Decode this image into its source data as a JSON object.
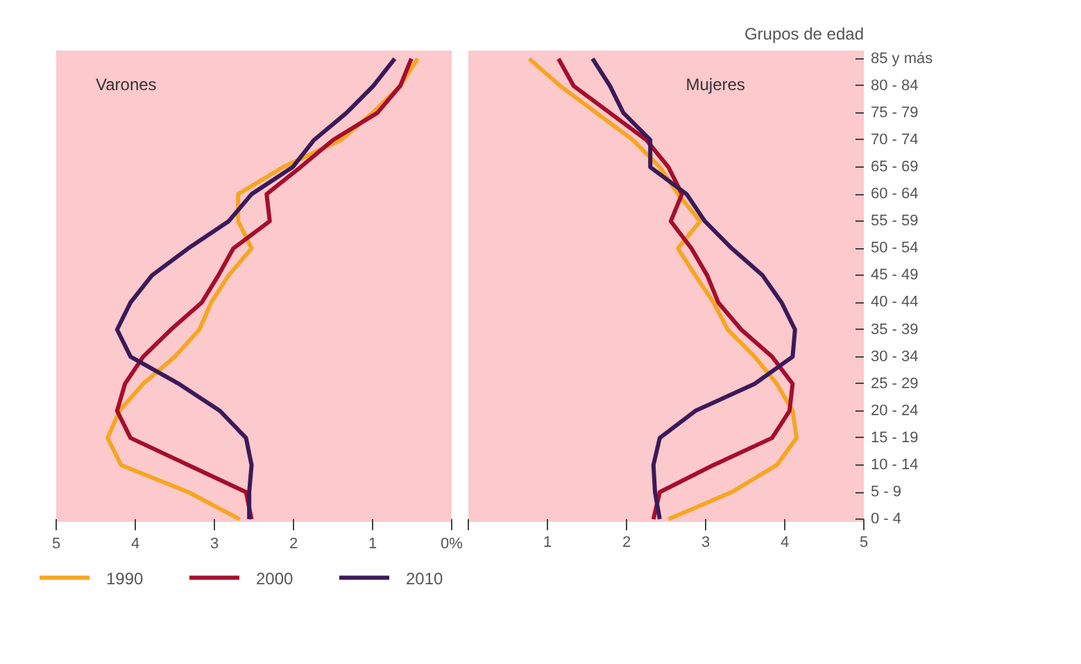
{
  "chart_data": [
    {
      "type": "line",
      "title": "Varones",
      "orientation": "horizontal",
      "categories": [
        null,
        null,
        null,
        null,
        null,
        null,
        null,
        null,
        null,
        null,
        null,
        null,
        null,
        null,
        null,
        null,
        null,
        null
      ],
      "series": [
        {
          "name": "1990",
          "color": "#f5a623",
          "values": [
            0.43,
            0.65,
            1.0,
            1.4,
            2.13,
            2.7,
            2.7,
            2.53,
            2.82,
            3.04,
            3.19,
            3.5,
            3.9,
            4.2,
            4.35,
            4.18,
            3.33,
            2.68
          ]
        },
        {
          "name": "2000",
          "color": "#a50e2d",
          "values": [
            0.51,
            0.65,
            0.94,
            1.5,
            1.91,
            2.34,
            2.3,
            2.76,
            2.95,
            3.16,
            3.55,
            3.9,
            4.13,
            4.23,
            4.06,
            3.33,
            2.6,
            2.53
          ]
        },
        {
          "name": "2010",
          "color": "#3b1a5a",
          "values": [
            0.72,
            0.99,
            1.33,
            1.74,
            2.01,
            2.53,
            2.82,
            3.33,
            3.79,
            4.06,
            4.23,
            4.06,
            3.45,
            2.93,
            2.6,
            2.53,
            2.56,
            2.56
          ]
        }
      ],
      "xlim": [
        5,
        0
      ],
      "xticks": [
        5,
        4,
        3,
        2,
        1,
        {
          "value": 0,
          "label": "0%"
        }
      ],
      "tick_labels": "x",
      "legend": "bottom",
      "line_style": "solid",
      "grid": false
    },
    {
      "type": "line",
      "title": "Mujeres",
      "orientation": "horizontal",
      "ylabel": "Grupos de edad",
      "categories": [
        "85 y más",
        "80 - 84",
        "75 - 79",
        "70 - 74",
        "65 - 69",
        "60 - 64",
        "55 - 59",
        "50 - 54",
        "45 - 49",
        "40 - 44",
        "35 - 39",
        "30 - 34",
        "25 - 29",
        "20 - 24",
        "15 - 19",
        "10 - 14",
        "5 - 9",
        "0 - 4"
      ],
      "series": [
        {
          "color": "#f5a623",
          "values": [
            0.77,
            1.16,
            1.62,
            2.08,
            2.42,
            2.65,
            2.93,
            2.65,
            2.87,
            3.1,
            3.28,
            3.62,
            3.9,
            4.1,
            4.15,
            3.9,
            3.33,
            2.53
          ]
        },
        {
          "color": "#a50e2d",
          "values": [
            1.14,
            1.33,
            1.79,
            2.25,
            2.53,
            2.7,
            2.56,
            2.82,
            3.02,
            3.16,
            3.45,
            3.84,
            4.1,
            4.06,
            3.84,
            3.1,
            2.42,
            2.34
          ]
        },
        {
          "color": "#3b1a5a",
          "values": [
            1.57,
            1.79,
            1.96,
            2.3,
            2.3,
            2.76,
            2.99,
            3.33,
            3.72,
            3.96,
            4.13,
            4.1,
            3.62,
            2.87,
            2.42,
            2.34,
            2.36,
            2.42
          ]
        }
      ],
      "xlim": [
        0,
        5
      ],
      "xticks": [
        {
          "value": 0,
          "label": null
        },
        1,
        2,
        3,
        4,
        5
      ],
      "line_style": "solid",
      "grid": false
    }
  ]
}
